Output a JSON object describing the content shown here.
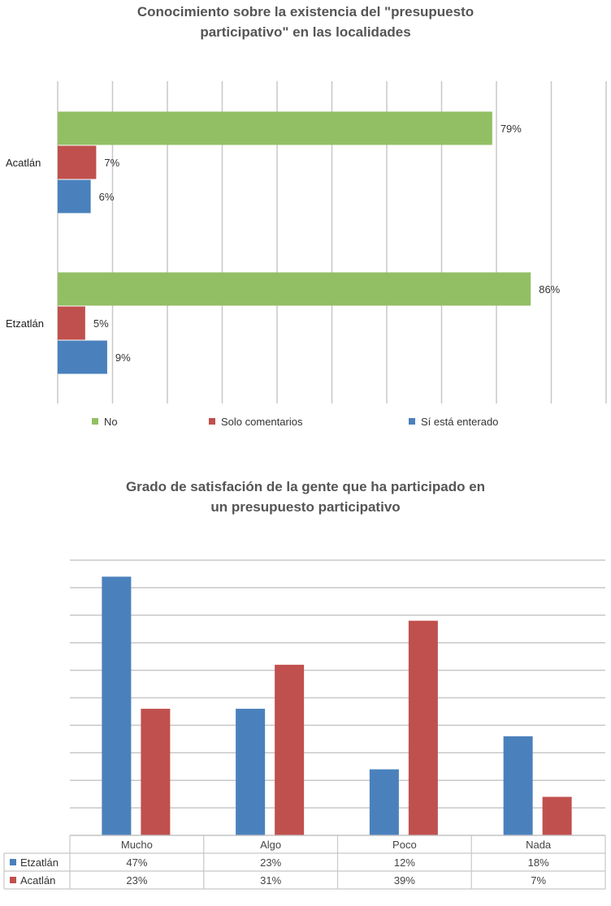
{
  "chart_data": [
    {
      "type": "bar",
      "orientation": "horizontal",
      "title_lines": [
        "Conocimiento sobre la existencia del \"presupuesto",
        "participativo\" en las localidades"
      ],
      "categories": [
        "Acatlán",
        "Etzatlán"
      ],
      "series": [
        {
          "name": "No",
          "color": "#93bf64",
          "values": [
            79,
            86
          ],
          "labels": [
            "79%",
            "86%"
          ]
        },
        {
          "name": "Solo comentarios",
          "color": "#c0504d",
          "values": [
            7,
            5
          ],
          "labels": [
            "7%",
            "5%"
          ]
        },
        {
          "name": "Sí está enterado",
          "color": "#4a81bd",
          "values": [
            6,
            9
          ],
          "labels": [
            "6%",
            "9%"
          ]
        }
      ],
      "xlim": [
        0,
        100
      ],
      "grid": true,
      "legend_position": "bottom"
    },
    {
      "type": "bar",
      "orientation": "vertical",
      "title_lines": [
        "Grado de satisfación de la gente que ha participado en",
        "un presupuesto participativo"
      ],
      "categories": [
        "Mucho",
        "Algo",
        "Poco",
        "Nada"
      ],
      "series": [
        {
          "name": "Etzatlán",
          "color": "#4a81bd",
          "values": [
            47,
            23,
            12,
            18
          ],
          "labels": [
            "47%",
            "23%",
            "12%",
            "18%"
          ]
        },
        {
          "name": "Acatlán",
          "color": "#c0504d",
          "values": [
            23,
            31,
            39,
            7
          ],
          "labels": [
            "23%",
            "31%",
            "39%",
            "7%"
          ]
        }
      ],
      "ylim": [
        0,
        50
      ],
      "grid": true,
      "legend_position": "data-table-bottom"
    }
  ]
}
